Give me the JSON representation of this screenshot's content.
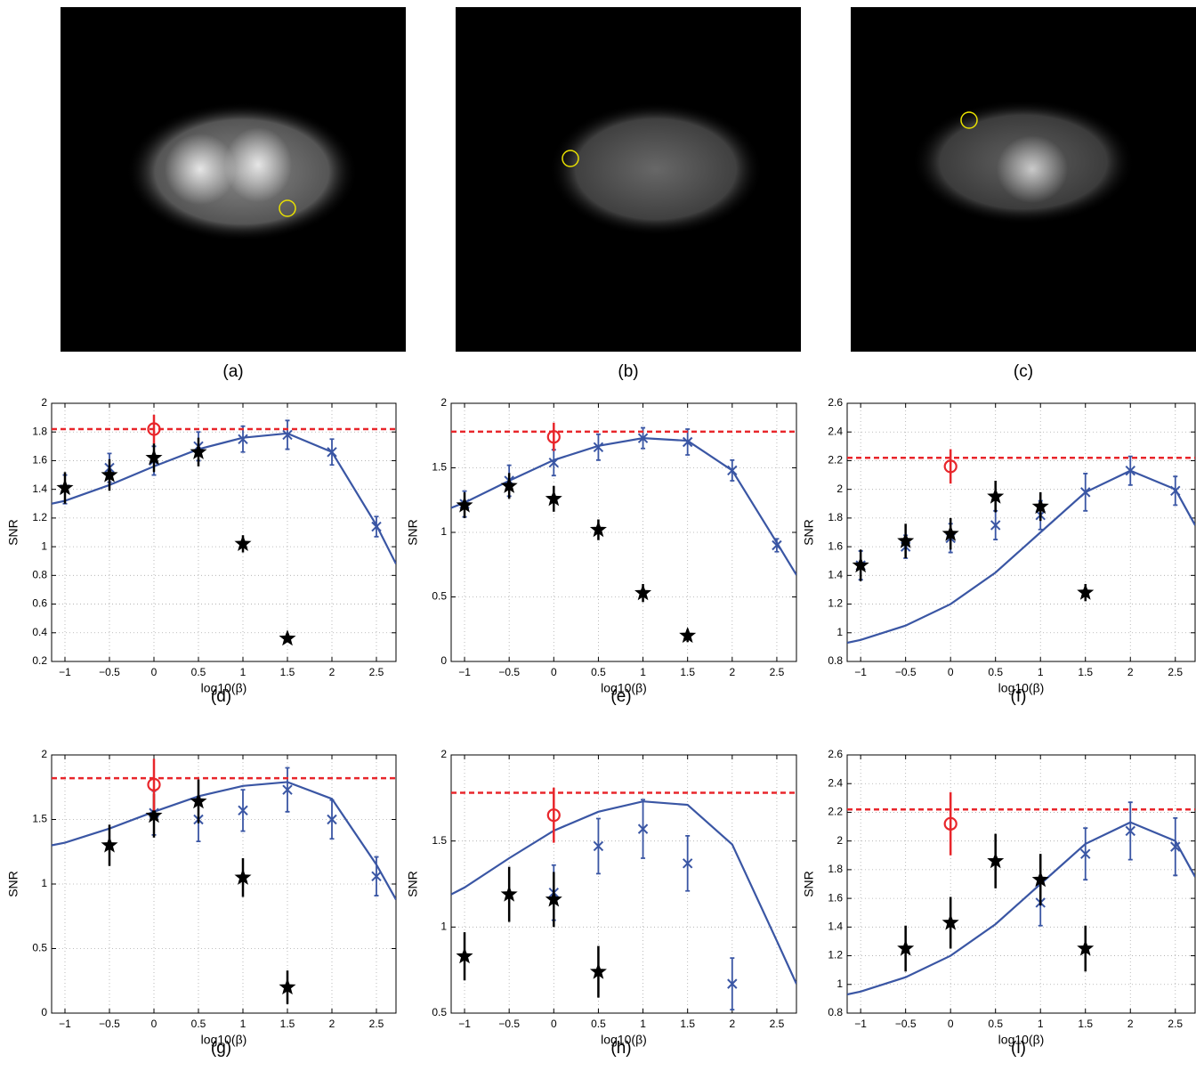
{
  "images": [
    {
      "caption": "(a)"
    },
    {
      "caption": "(b)"
    },
    {
      "caption": "(c)"
    }
  ],
  "chart_data": [
    {
      "type": "line",
      "caption": "(d)",
      "xlabel": "log10(β)",
      "ylabel": "SNR",
      "grid": true,
      "xlim": [
        -1.15,
        2.72
      ],
      "xticks": [
        {
          "value": -1,
          "label": "−1"
        },
        {
          "value": -0.5,
          "label": "−0.5"
        },
        0,
        0.5,
        1,
        1.5,
        2,
        2.5
      ],
      "ylim": [
        0.2,
        2
      ],
      "yticks": [
        0.2,
        0.4,
        0.6,
        0.8,
        1,
        1.2,
        1.4,
        1.6,
        1.8,
        2
      ],
      "hline": {
        "value": 1.82,
        "color": "#e8262b",
        "dash": true
      },
      "series": [
        {
          "marker": "none",
          "color": "#3a56a4",
          "x": [
            -1.15,
            -1,
            -0.5,
            0,
            0.5,
            1,
            1.5,
            2,
            2.5,
            2.72
          ],
          "values": [
            1.3,
            1.32,
            1.43,
            1.56,
            1.68,
            1.76,
            1.79,
            1.66,
            1.15,
            0.88
          ]
        },
        {
          "marker": "x",
          "color": "#3a56a4",
          "x": [
            -1,
            -0.5,
            0,
            0.5,
            1,
            1.5,
            2,
            2.5
          ],
          "values": [
            1.4,
            1.55,
            1.6,
            1.7,
            1.75,
            1.78,
            1.66,
            1.14
          ],
          "errors": [
            0.1,
            0.1,
            0.1,
            0.1,
            0.09,
            0.1,
            0.09,
            0.07
          ]
        },
        {
          "marker": "star",
          "color": "#000000",
          "x": [
            -1,
            -0.5,
            0,
            0.5,
            1,
            1.5
          ],
          "values": [
            1.41,
            1.5,
            1.62,
            1.66,
            1.02,
            0.36
          ],
          "errors": [
            0.11,
            0.11,
            0.1,
            0.1,
            0.06,
            0.02
          ]
        },
        {
          "marker": "circle",
          "color": "#e8262b",
          "x": [
            0
          ],
          "values": [
            1.82
          ],
          "errors": [
            0.1
          ]
        }
      ]
    },
    {
      "type": "line",
      "caption": "(e)",
      "xlabel": "log10(β)",
      "ylabel": "SNR",
      "grid": true,
      "xlim": [
        -1.15,
        2.72
      ],
      "xticks": [
        {
          "value": -1,
          "label": "−1"
        },
        {
          "value": -0.5,
          "label": "−0.5"
        },
        0,
        0.5,
        1,
        1.5,
        2,
        2.5
      ],
      "ylim": [
        0,
        2
      ],
      "yticks": [
        0,
        0.5,
        1,
        1.5,
        2
      ],
      "hline": {
        "value": 1.78,
        "color": "#e8262b",
        "dash": true
      },
      "series": [
        {
          "marker": "none",
          "color": "#3a56a4",
          "x": [
            -1.15,
            -1,
            -0.5,
            0,
            0.5,
            1,
            1.5,
            2,
            2.5,
            2.72
          ],
          "values": [
            1.19,
            1.23,
            1.4,
            1.56,
            1.67,
            1.73,
            1.71,
            1.48,
            0.92,
            0.67
          ]
        },
        {
          "marker": "x",
          "color": "#3a56a4",
          "x": [
            -1,
            -0.5,
            0,
            0.5,
            1,
            1.5,
            2,
            2.5
          ],
          "values": [
            1.22,
            1.4,
            1.54,
            1.66,
            1.73,
            1.7,
            1.48,
            0.9
          ],
          "errors": [
            0.1,
            0.12,
            0.1,
            0.1,
            0.08,
            0.1,
            0.08,
            0.05
          ]
        },
        {
          "marker": "star",
          "color": "#000000",
          "x": [
            -1,
            -0.5,
            0,
            0.5,
            1,
            1.5
          ],
          "values": [
            1.21,
            1.36,
            1.26,
            1.02,
            0.53,
            0.2
          ],
          "errors": [
            0.1,
            0.1,
            0.1,
            0.08,
            0.07,
            0.05
          ]
        },
        {
          "marker": "circle",
          "color": "#e8262b",
          "x": [
            0
          ],
          "values": [
            1.74
          ],
          "errors": [
            0.11
          ]
        }
      ]
    },
    {
      "type": "line",
      "caption": "(f)",
      "xlabel": "log10(β)",
      "ylabel": "SNR",
      "grid": true,
      "xlim": [
        -1.15,
        2.72
      ],
      "xticks": [
        {
          "value": -1,
          "label": "−1"
        },
        {
          "value": -0.5,
          "label": "−0.5"
        },
        0,
        0.5,
        1,
        1.5,
        2,
        2.5
      ],
      "ylim": [
        0.8,
        2.6
      ],
      "yticks": [
        0.8,
        1,
        1.2,
        1.4,
        1.6,
        1.8,
        2,
        2.2,
        2.4,
        2.6
      ],
      "hline": {
        "value": 2.22,
        "color": "#e8262b",
        "dash": true
      },
      "series": [
        {
          "marker": "none",
          "color": "#3a56a4",
          "x": [
            -1.15,
            -1,
            -0.5,
            0,
            0.5,
            1,
            1.5,
            2,
            2.5,
            2.72
          ],
          "values": [
            0.93,
            0.95,
            1.05,
            1.2,
            1.42,
            1.7,
            1.98,
            2.13,
            2.0,
            1.75
          ]
        },
        {
          "marker": "x",
          "color": "#3a56a4",
          "x": [
            -1,
            -0.5,
            0,
            0.5,
            1,
            1.5,
            2,
            2.5
          ],
          "values": [
            1.47,
            1.6,
            1.66,
            1.75,
            1.82,
            1.98,
            2.13,
            1.99
          ],
          "errors": [
            0.1,
            0.08,
            0.1,
            0.1,
            0.1,
            0.13,
            0.1,
            0.1
          ]
        },
        {
          "marker": "star",
          "color": "#000000",
          "x": [
            -1,
            -0.5,
            0,
            0.5,
            1,
            1.5
          ],
          "values": [
            1.47,
            1.64,
            1.69,
            1.95,
            1.88,
            1.28
          ],
          "errors": [
            0.11,
            0.12,
            0.11,
            0.11,
            0.1,
            0.06
          ]
        },
        {
          "marker": "circle",
          "color": "#e8262b",
          "x": [
            0
          ],
          "values": [
            2.16
          ],
          "errors": [
            0.12
          ]
        }
      ]
    },
    {
      "type": "line",
      "caption": "(g)",
      "xlabel": "log10(β)",
      "ylabel": "SNR",
      "grid": true,
      "xlim": [
        -1.15,
        2.72
      ],
      "xticks": [
        {
          "value": -1,
          "label": "−1"
        },
        {
          "value": -0.5,
          "label": "−0.5"
        },
        0,
        0.5,
        1,
        1.5,
        2,
        2.5
      ],
      "ylim": [
        0,
        2
      ],
      "yticks": [
        0,
        0.5,
        1,
        1.5,
        2
      ],
      "hline": {
        "value": 1.82,
        "color": "#e8262b",
        "dash": true
      },
      "series": [
        {
          "marker": "none",
          "color": "#3a56a4",
          "x": [
            -1.15,
            -1,
            -0.5,
            0,
            0.5,
            1,
            1.5,
            2,
            2.5,
            2.72
          ],
          "values": [
            1.3,
            1.32,
            1.43,
            1.56,
            1.68,
            1.76,
            1.79,
            1.66,
            1.15,
            0.88
          ]
        },
        {
          "marker": "x",
          "color": "#3a56a4",
          "x": [
            0,
            0.5,
            1,
            1.5,
            2,
            2.5
          ],
          "values": [
            1.55,
            1.5,
            1.57,
            1.73,
            1.5,
            1.06
          ],
          "errors": [
            0.17,
            0.17,
            0.16,
            0.17,
            0.15,
            0.15
          ]
        },
        {
          "marker": "star",
          "color": "#000000",
          "x": [
            -0.5,
            0,
            0.5,
            1,
            1.5
          ],
          "values": [
            1.3,
            1.53,
            1.64,
            1.05,
            0.2
          ],
          "errors": [
            0.16,
            0.17,
            0.17,
            0.15,
            0.13
          ]
        },
        {
          "marker": "circle",
          "color": "#e8262b",
          "x": [
            0
          ],
          "values": [
            1.77
          ],
          "errors": [
            0.2
          ]
        }
      ]
    },
    {
      "type": "line",
      "caption": "(h)",
      "xlabel": "log10(β)",
      "ylabel": "SNR",
      "grid": true,
      "xlim": [
        -1.15,
        2.72
      ],
      "xticks": [
        {
          "value": -1,
          "label": "−1"
        },
        {
          "value": -0.5,
          "label": "−0.5"
        },
        0,
        0.5,
        1,
        1.5,
        2,
        2.5
      ],
      "ylim": [
        0.5,
        2
      ],
      "yticks": [
        0.5,
        1,
        1.5,
        2
      ],
      "hline": {
        "value": 1.78,
        "color": "#e8262b",
        "dash": true
      },
      "series": [
        {
          "marker": "none",
          "color": "#3a56a4",
          "x": [
            -1.15,
            -1,
            -0.5,
            0,
            0.5,
            1,
            1.5,
            2,
            2.5,
            2.72
          ],
          "values": [
            1.19,
            1.23,
            1.4,
            1.56,
            1.67,
            1.73,
            1.71,
            1.48,
            0.92,
            0.67
          ]
        },
        {
          "marker": "x",
          "color": "#3a56a4",
          "x": [
            0,
            0.5,
            1,
            1.5,
            2
          ],
          "values": [
            1.2,
            1.47,
            1.57,
            1.37,
            0.67
          ],
          "errors": [
            0.16,
            0.16,
            0.17,
            0.16,
            0.15
          ]
        },
        {
          "marker": "star",
          "color": "#000000",
          "x": [
            -1,
            -0.5,
            0,
            0.5
          ],
          "values": [
            0.83,
            1.19,
            1.16,
            0.74
          ],
          "errors": [
            0.14,
            0.16,
            0.16,
            0.15
          ]
        },
        {
          "marker": "circle",
          "color": "#e8262b",
          "x": [
            0
          ],
          "values": [
            1.65
          ],
          "errors": [
            0.16
          ]
        }
      ]
    },
    {
      "type": "line",
      "caption": "(i)",
      "xlabel": "log10(β)",
      "ylabel": "SNR",
      "grid": true,
      "xlim": [
        -1.15,
        2.72
      ],
      "xticks": [
        {
          "value": -1,
          "label": "−1"
        },
        {
          "value": -0.5,
          "label": "−0.5"
        },
        0,
        0.5,
        1,
        1.5,
        2,
        2.5
      ],
      "ylim": [
        0.8,
        2.6
      ],
      "yticks": [
        0.8,
        1,
        1.2,
        1.4,
        1.6,
        1.8,
        2,
        2.2,
        2.4,
        2.6
      ],
      "hline": {
        "value": 2.22,
        "color": "#e8262b",
        "dash": true
      },
      "series": [
        {
          "marker": "none",
          "color": "#3a56a4",
          "x": [
            -1.15,
            -1,
            -0.5,
            0,
            0.5,
            1,
            1.5,
            2,
            2.5,
            2.72
          ],
          "values": [
            0.93,
            0.95,
            1.05,
            1.2,
            1.42,
            1.7,
            1.98,
            2.13,
            2.0,
            1.75
          ]
        },
        {
          "marker": "x",
          "color": "#3a56a4",
          "x": [
            1,
            1.5,
            2,
            2.5
          ],
          "values": [
            1.57,
            1.91,
            2.07,
            1.96
          ],
          "errors": [
            0.16,
            0.18,
            0.2,
            0.2
          ]
        },
        {
          "marker": "star",
          "color": "#000000",
          "x": [
            -0.5,
            0,
            0.5,
            1,
            1.5
          ],
          "values": [
            1.25,
            1.43,
            1.86,
            1.73,
            1.25
          ],
          "errors": [
            0.16,
            0.18,
            0.19,
            0.18,
            0.16
          ]
        },
        {
          "marker": "circle",
          "color": "#e8262b",
          "x": [
            0
          ],
          "values": [
            2.12
          ],
          "errors": [
            0.22
          ]
        }
      ]
    }
  ]
}
